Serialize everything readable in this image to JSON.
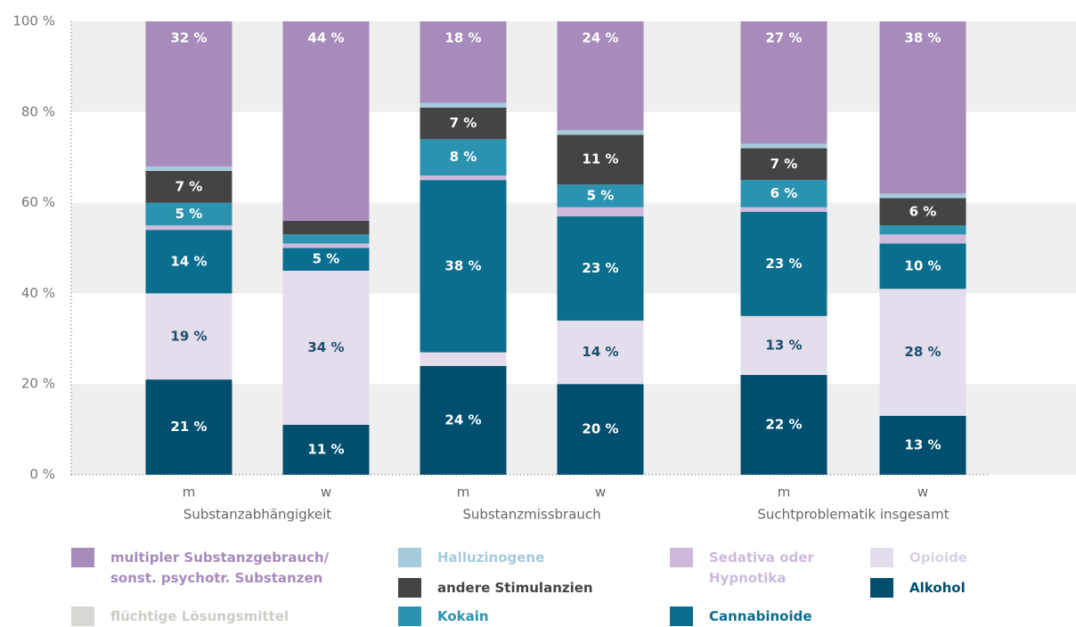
{
  "chart_data": {
    "type": "stacked_bar",
    "categories": [
      "m",
      "w",
      "m",
      "w",
      "m",
      "w"
    ],
    "group_labels": [
      "Substanzabhängigkeit",
      "Substanzmissbrauch",
      "Suchtproblematik insgesamt"
    ],
    "ylim": [
      0,
      100
    ],
    "yticks": [
      {
        "value": 0,
        "label": "0 %"
      },
      {
        "value": 20,
        "label": "20 %"
      },
      {
        "value": 40,
        "label": "40 %"
      },
      {
        "value": 60,
        "label": "60 %"
      },
      {
        "value": 80,
        "label": "80 %"
      },
      {
        "value": 100,
        "label": "100 %"
      }
    ],
    "series": [
      {
        "name": "Alkohol",
        "color": "#004f6e",
        "values": [
          21,
          11,
          24,
          20,
          22,
          13
        ],
        "value_labels": [
          "21 %",
          "11 %",
          "24 %",
          "20 %",
          "22 %",
          "13 %"
        ]
      },
      {
        "name": "Opioide",
        "color": "#e4ddec",
        "values": [
          19,
          34,
          3,
          14,
          13,
          28
        ],
        "value_labels": [
          "19 %",
          "34 %",
          null,
          "14 %",
          "13 %",
          "28 %"
        ]
      },
      {
        "name": "Cannabinoide",
        "color": "#0a6e8e",
        "values": [
          14,
          5,
          38,
          23,
          23,
          10
        ],
        "value_labels": [
          "14 %",
          "5 %",
          "38 %",
          "23 %",
          "23 %",
          "10 %"
        ]
      },
      {
        "name": "Sedativa oder\nHypnotika",
        "color": "#cdb9dc",
        "values": [
          1,
          1,
          1,
          2,
          1,
          2
        ],
        "value_labels": [
          null,
          null,
          null,
          null,
          null,
          null
        ]
      },
      {
        "name": "Kokain",
        "color": "#2b93b0",
        "values": [
          5,
          2,
          8,
          5,
          6,
          2
        ],
        "value_labels": [
          "5 %",
          null,
          "8 %",
          "5 %",
          "6 %",
          null
        ]
      },
      {
        "name": "andere Stimulanzien",
        "color": "#444444",
        "values": [
          7,
          3,
          7,
          11,
          7,
          6
        ],
        "value_labels": [
          "7 %",
          null,
          "7 %",
          "11 %",
          "7 %",
          "6 %"
        ]
      },
      {
        "name": "Halluzinogene",
        "color": "#a6cbdc",
        "values": [
          1,
          0,
          1,
          1,
          1,
          1
        ],
        "value_labels": [
          null,
          null,
          null,
          null,
          null,
          null
        ]
      },
      {
        "name": "multipler Substanzgebrauch/\nsonst. psychotr. Substanzen",
        "color": "#a68bbb",
        "values": [
          32,
          44,
          18,
          24,
          27,
          38
        ],
        "value_labels": [
          "32 %",
          "44 %",
          "18 %",
          "24 %",
          "27 %",
          "38 %"
        ]
      },
      {
        "name": "flüchtige Lösungsmittel",
        "color": "#d9d7d2",
        "values": [
          0,
          0,
          0,
          0,
          0,
          0
        ],
        "value_labels": [
          null,
          null,
          null,
          null,
          null,
          null
        ]
      }
    ]
  }
}
